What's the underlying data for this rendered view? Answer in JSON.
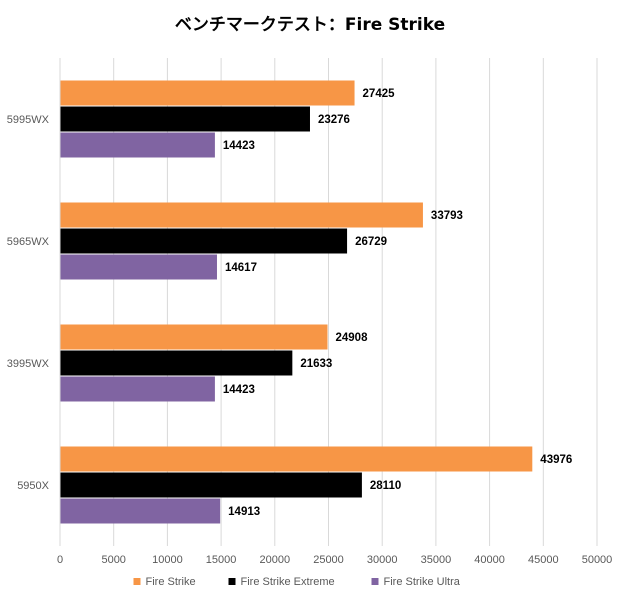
{
  "chart_data": {
    "type": "bar",
    "orientation": "horizontal",
    "title": "ベンチマークテスト：Fire Strike",
    "categories": [
      "5995WX",
      "5965WX",
      "3995WX",
      "5950X"
    ],
    "series": [
      {
        "name": "Fire Strike",
        "color": "#f79646",
        "values": [
          27425,
          33793,
          24908,
          43976
        ]
      },
      {
        "name": "Fire Strike Extreme",
        "color": "#000000",
        "values": [
          23276,
          26729,
          21633,
          28110
        ]
      },
      {
        "name": "Fire Strike Ultra",
        "color": "#8064a2",
        "values": [
          14423,
          14617,
          14423,
          14913
        ]
      }
    ],
    "xlim": [
      0,
      50000
    ],
    "xticks": [
      0,
      5000,
      10000,
      15000,
      20000,
      25000,
      30000,
      35000,
      40000,
      45000,
      50000
    ],
    "xlabel": "",
    "ylabel": "",
    "grid": true,
    "legend_position": "bottom",
    "data_labels": true
  }
}
